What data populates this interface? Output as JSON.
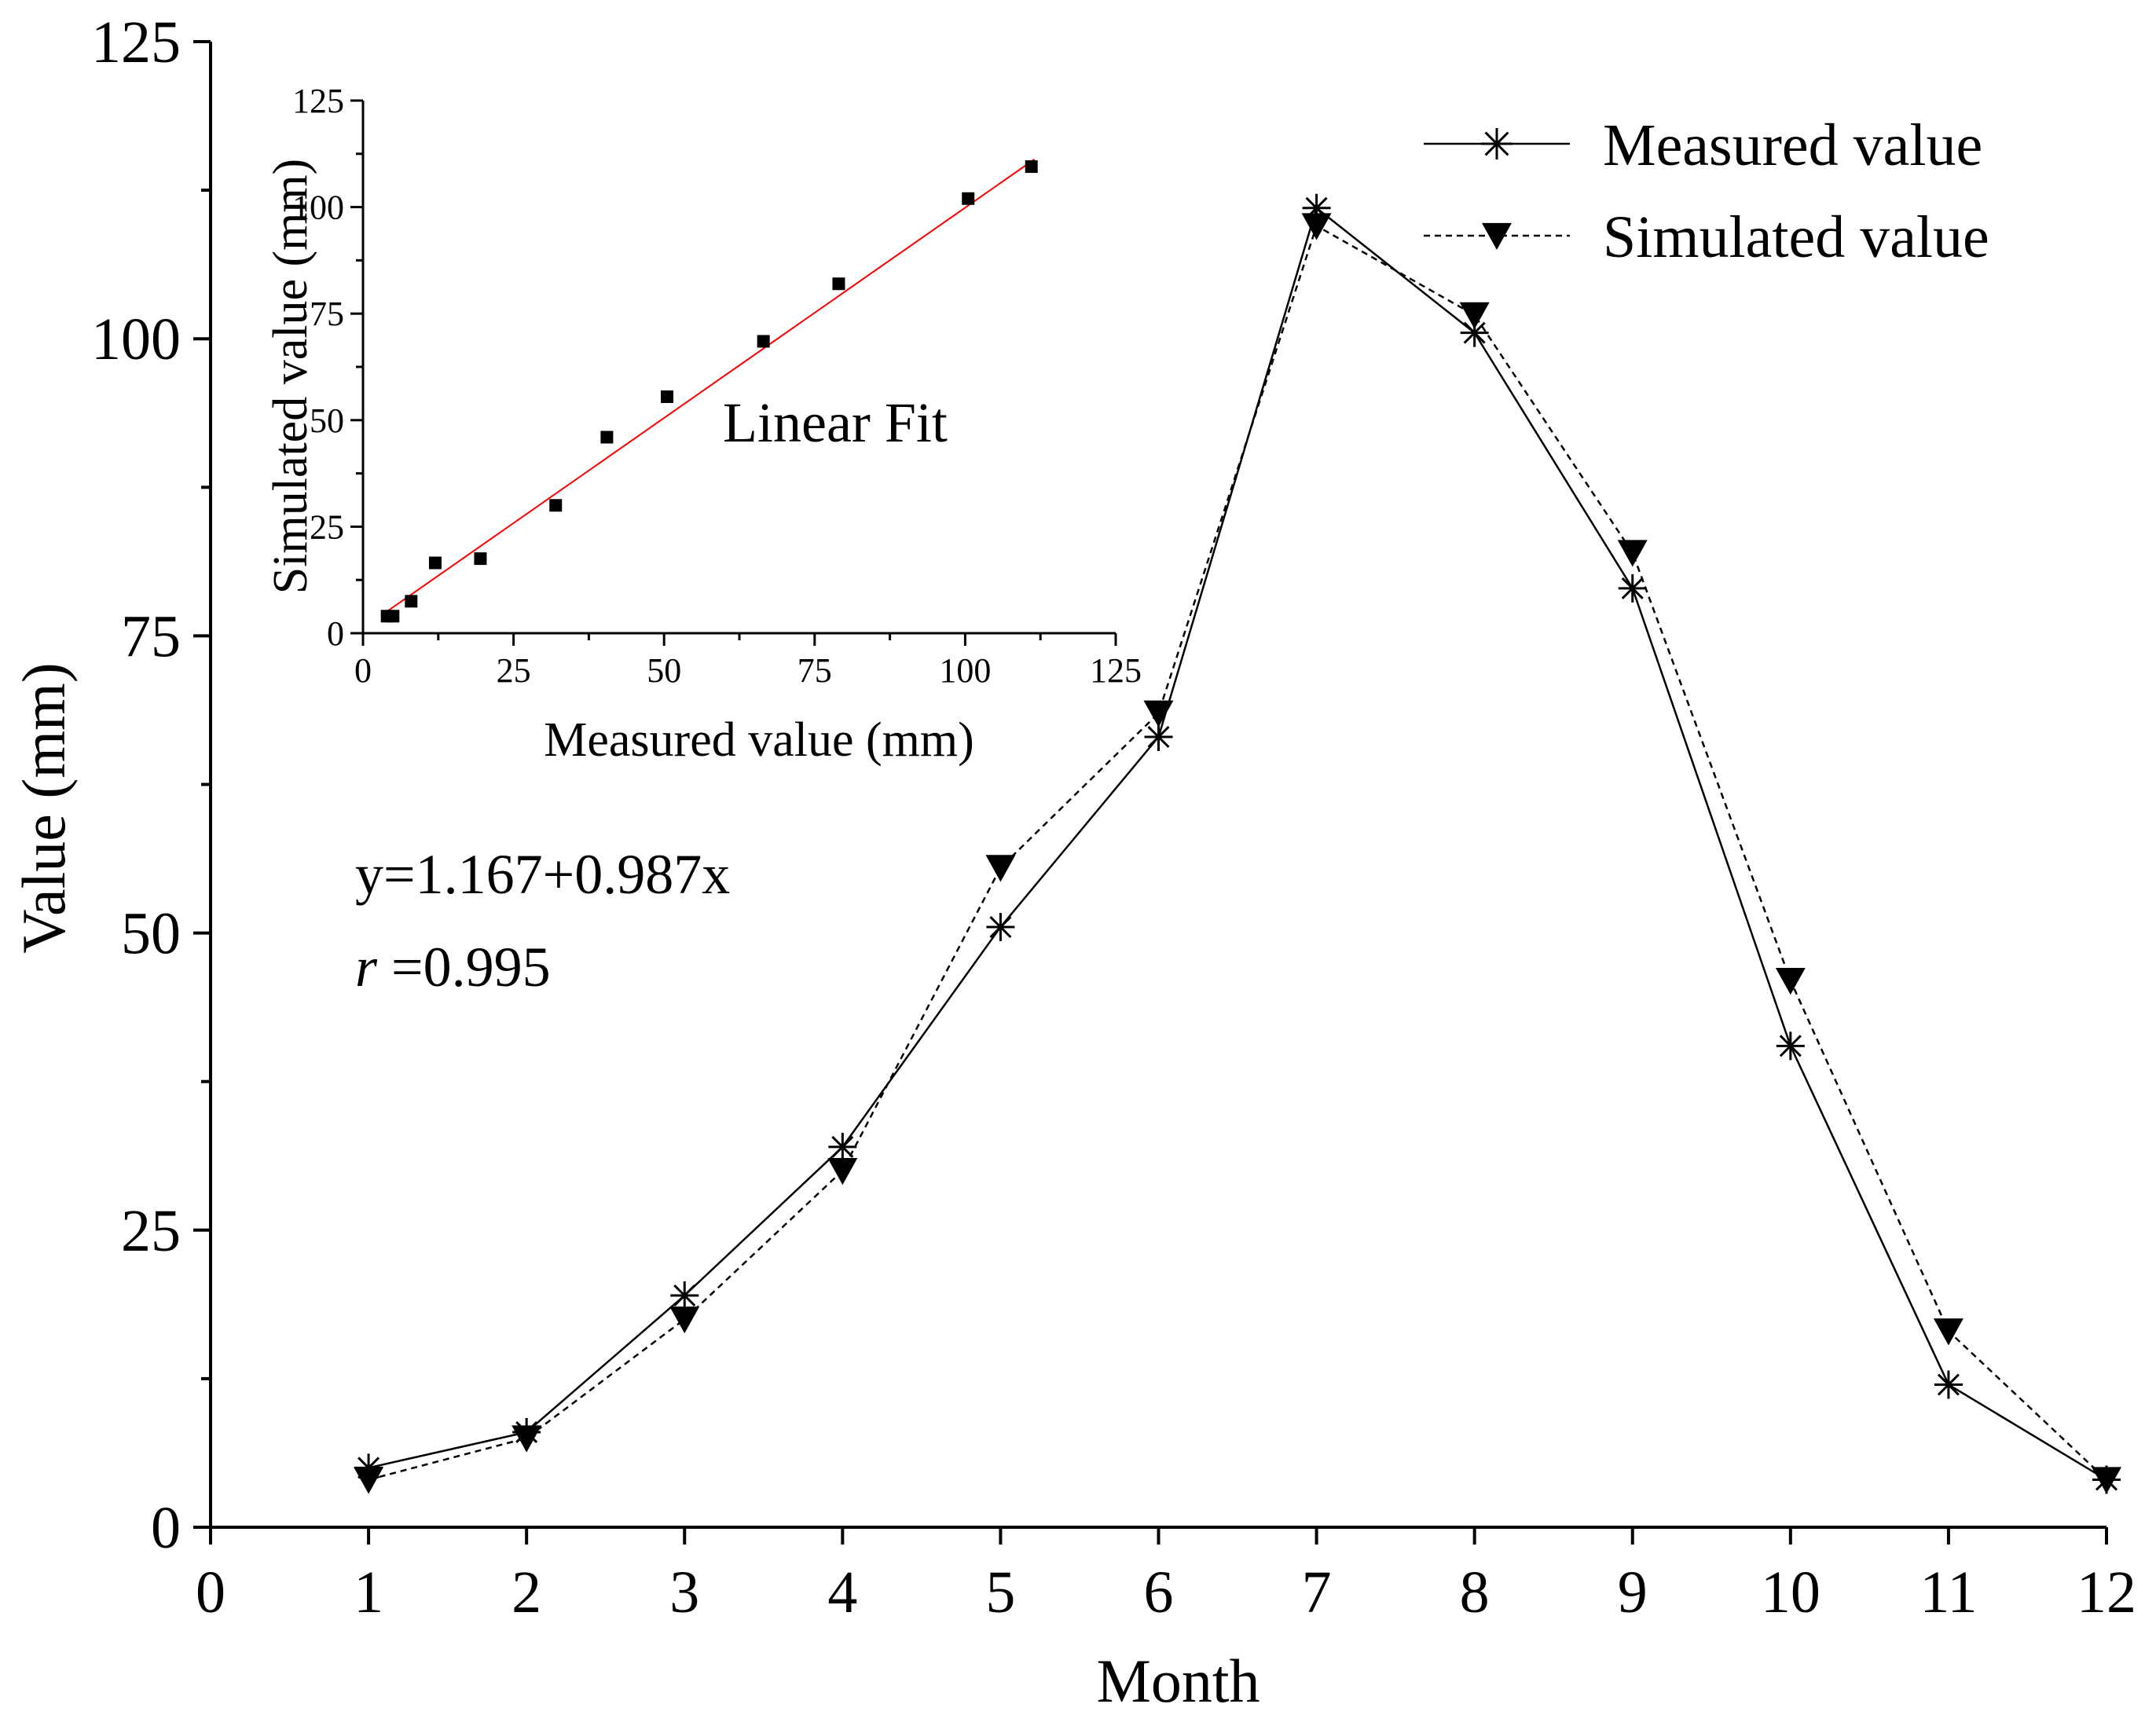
{
  "chart_data": [
    {
      "type": "line",
      "title": "",
      "xlabel": "Month",
      "ylabel": "Value (mm)",
      "xlim": [
        0,
        12
      ],
      "ylim": [
        0,
        125
      ],
      "xticks": [
        "0",
        "1",
        "2",
        "3",
        "4",
        "5",
        "6",
        "7",
        "8",
        "9",
        "10",
        "11",
        "12"
      ],
      "yticks": [
        "0",
        "25",
        "50",
        "75",
        "100",
        "125"
      ],
      "grid": false,
      "legend_position": "top-right",
      "x": [
        1,
        2,
        3,
        4,
        5,
        6,
        7,
        8,
        9,
        10,
        11,
        12
      ],
      "series": [
        {
          "name": "Measured value",
          "marker": "asterisk",
          "line_style": "solid",
          "values": [
            5.0,
            8.0,
            19.5,
            32.0,
            50.5,
            66.5,
            111.0,
            100.5,
            79.0,
            40.5,
            12.0,
            4.0
          ]
        },
        {
          "name": "Simulated value",
          "marker": "triangle-down",
          "line_style": "dashed",
          "values": [
            4.0,
            7.5,
            17.5,
            30.0,
            55.5,
            68.5,
            109.5,
            102.0,
            82.0,
            46.0,
            16.5,
            4.0
          ]
        }
      ],
      "annotations": {
        "equation": "y=1.167+0.987x",
        "r_symbol": "r",
        "r_value": " =0.995"
      }
    },
    {
      "type": "scatter",
      "title": "Linear Fit",
      "xlabel": "Measured value (mm)",
      "ylabel": "Simulated value (mm)",
      "xlim": [
        0,
        125
      ],
      "ylim": [
        0,
        125
      ],
      "xticks": [
        "0",
        "25",
        "50",
        "75",
        "100",
        "125"
      ],
      "yticks": [
        "0",
        "25",
        "50",
        "75",
        "100",
        "125"
      ],
      "grid": false,
      "points": [
        {
          "x": 4.0,
          "y": 4.0
        },
        {
          "x": 5.0,
          "y": 4.0
        },
        {
          "x": 8.0,
          "y": 7.5
        },
        {
          "x": 12.0,
          "y": 16.5
        },
        {
          "x": 19.5,
          "y": 17.5
        },
        {
          "x": 32.0,
          "y": 30.0
        },
        {
          "x": 40.5,
          "y": 46.0
        },
        {
          "x": 50.5,
          "y": 55.5
        },
        {
          "x": 66.5,
          "y": 68.5
        },
        {
          "x": 79.0,
          "y": 82.0
        },
        {
          "x": 100.5,
          "y": 102.0
        },
        {
          "x": 111.0,
          "y": 109.5
        }
      ],
      "fit": {
        "intercept": 1.167,
        "slope": 0.987,
        "x_range": [
          3,
          111
        ],
        "color": "#ff0000"
      }
    }
  ]
}
